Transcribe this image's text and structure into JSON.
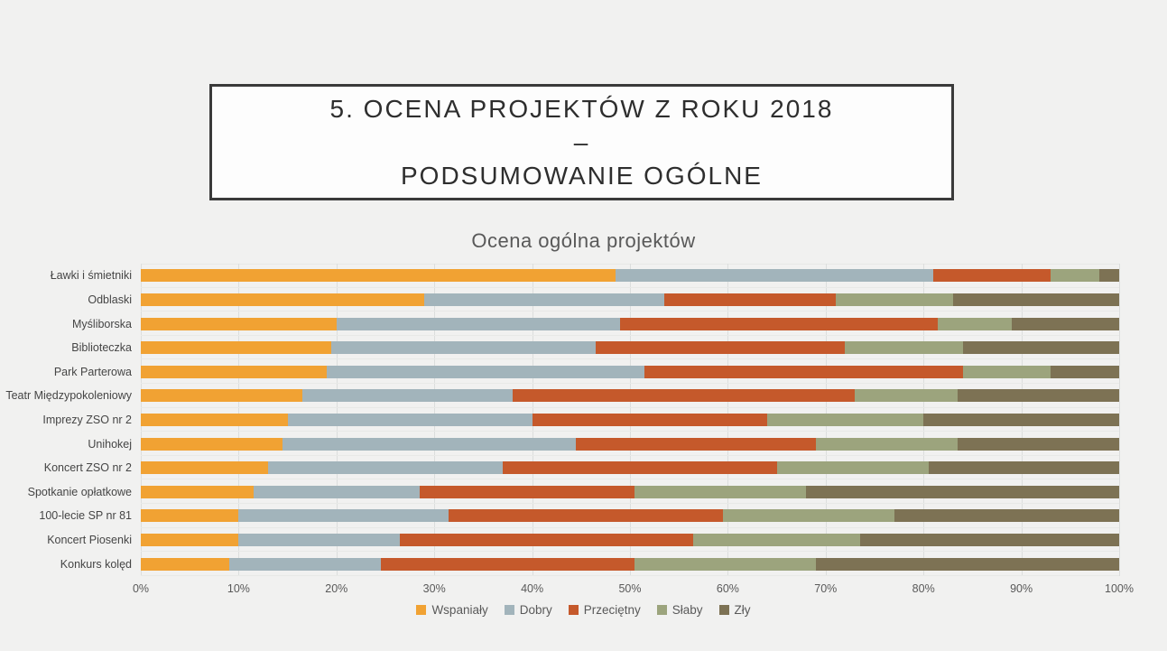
{
  "slide": {
    "background": "#F1F1F0",
    "title": {
      "line1": "5. OCENA PROJEKTÓW Z ROKU 2018",
      "line2": "–",
      "line3": "PODSUMOWANIE OGÓLNE"
    }
  },
  "chart_data": {
    "type": "bar",
    "orientation": "horizontal",
    "stacked": true,
    "percent_stacked": true,
    "title": "Ocena ogólna projektów",
    "categories": [
      "Ławki i śmietniki",
      "Odblaski",
      "Myśliborska",
      "Biblioteczka",
      "Park Parterowa",
      "Teatr Międzypokoleniowy",
      "Imprezy ZSO nr 2",
      "Unihokej",
      "Koncert ZSO nr 2",
      "Spotkanie opłatkowe",
      "100-lecie SP nr 81",
      "Koncert Piosenki",
      "Konkurs kolęd"
    ],
    "series": [
      {
        "name": "Wspaniały",
        "color": "#F1A233",
        "values": [
          48.5,
          29,
          20,
          19.5,
          19,
          16.5,
          15,
          14.5,
          13,
          11.5,
          10,
          10,
          9
        ]
      },
      {
        "name": "Dobry",
        "color": "#A2B4BB",
        "values": [
          32.5,
          24.5,
          29,
          27,
          32.5,
          21.5,
          25,
          30,
          24,
          17,
          21.5,
          16.5,
          15.5
        ]
      },
      {
        "name": "Przeciętny",
        "color": "#C5592B",
        "values": [
          12,
          17.5,
          32.5,
          25.5,
          32.5,
          35,
          24,
          24.5,
          28,
          22,
          28,
          30,
          26
        ]
      },
      {
        "name": "Słaby",
        "color": "#9CA47D",
        "values": [
          5,
          12,
          7.5,
          12,
          9,
          10.5,
          16,
          14.5,
          15.5,
          17.5,
          17.5,
          17,
          18.5
        ]
      },
      {
        "name": "Zły",
        "color": "#7D7254",
        "values": [
          2,
          17,
          11,
          16,
          7,
          16.5,
          20,
          16.5,
          19.5,
          32,
          23,
          26.5,
          31
        ]
      }
    ],
    "xlim": [
      0,
      100
    ],
    "x_ticks": [
      "0%",
      "10%",
      "20%",
      "30%",
      "40%",
      "50%",
      "60%",
      "70%",
      "80%",
      "90%",
      "100%"
    ],
    "legend_position": "bottom",
    "gridlines": "vertical-major"
  }
}
